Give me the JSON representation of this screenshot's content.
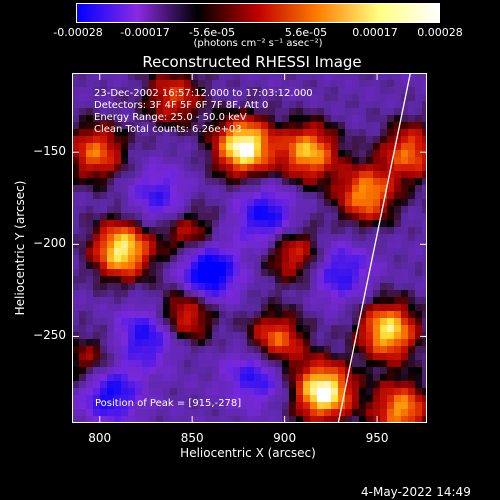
{
  "chart_data": {
    "type": "heatmap",
    "title": "Reconstructed RHESSI Image",
    "xlabel": "Heliocentric X (arcsec)",
    "ylabel": "Heliocentric Y (arcsec)",
    "xlim": [
      785,
      977
    ],
    "ylim": [
      -297,
      -107
    ],
    "x_ticks": [
      "800",
      "850",
      "900",
      "950"
    ],
    "y_ticks": [
      "-150",
      "-200",
      "-250"
    ],
    "x_tick_values": [
      800,
      850,
      900,
      950
    ],
    "y_tick_values": [
      -150,
      -200,
      -250
    ],
    "colorbar": {
      "ticks": [
        "-0.00028",
        "-0.00017",
        "-5.6e-05",
        "5.6e-05",
        "0.00017",
        "0.00028"
      ],
      "unit": "(photons cm⁻² s⁻¹ asec⁻²)",
      "colors": [
        "#0000ff",
        "#8a2be2",
        "#000000",
        "#c00000",
        "#ff7f00",
        "#ffff80",
        "#ffffff"
      ]
    },
    "annotations": [
      "23-Dec-2002 16:57:12.000 to 17:03:12.000",
      "Detectors: 3F 4F 5F 6F 7F 8F, Att 0",
      "Energy Range: 25.0 - 50.0 keV",
      "Clean     Total counts: 6.26e+03"
    ],
    "peak_label": "Position of Peak = [915,-278]",
    "peak": [
      915,
      -278
    ],
    "limb_line": [
      [
        929,
        -297
      ],
      [
        968,
        -107
      ]
    ],
    "hotspots": [
      {
        "x": 878,
        "y": -147,
        "v": 1.0
      },
      {
        "x": 812,
        "y": -203,
        "v": 0.9
      },
      {
        "x": 921,
        "y": -280,
        "v": 1.0
      },
      {
        "x": 913,
        "y": -150,
        "v": 0.75
      },
      {
        "x": 944,
        "y": -173,
        "v": 0.7
      },
      {
        "x": 956,
        "y": -247,
        "v": 0.85
      },
      {
        "x": 963,
        "y": -290,
        "v": 0.7
      },
      {
        "x": 798,
        "y": -150,
        "v": 0.6
      },
      {
        "x": 895,
        "y": -253,
        "v": 0.65
      },
      {
        "x": 847,
        "y": -237,
        "v": 0.55
      },
      {
        "x": 840,
        "y": -120,
        "v": 0.5
      },
      {
        "x": 968,
        "y": -150,
        "v": 0.6
      },
      {
        "x": 848,
        "y": -195,
        "v": 0.45
      },
      {
        "x": 905,
        "y": -205,
        "v": 0.5
      },
      {
        "x": 795,
        "y": -265,
        "v": 0.4
      }
    ],
    "coldspots": [
      {
        "x": 858,
        "y": -215,
        "v": -0.8
      },
      {
        "x": 805,
        "y": -280,
        "v": -0.6
      },
      {
        "x": 885,
        "y": -270,
        "v": -0.5
      },
      {
        "x": 890,
        "y": -185,
        "v": -0.55
      },
      {
        "x": 825,
        "y": -250,
        "v": -0.5
      },
      {
        "x": 930,
        "y": -215,
        "v": -0.45
      },
      {
        "x": 832,
        "y": -175,
        "v": -0.4
      }
    ]
  },
  "timestamp": "4-May-2022 14:49"
}
